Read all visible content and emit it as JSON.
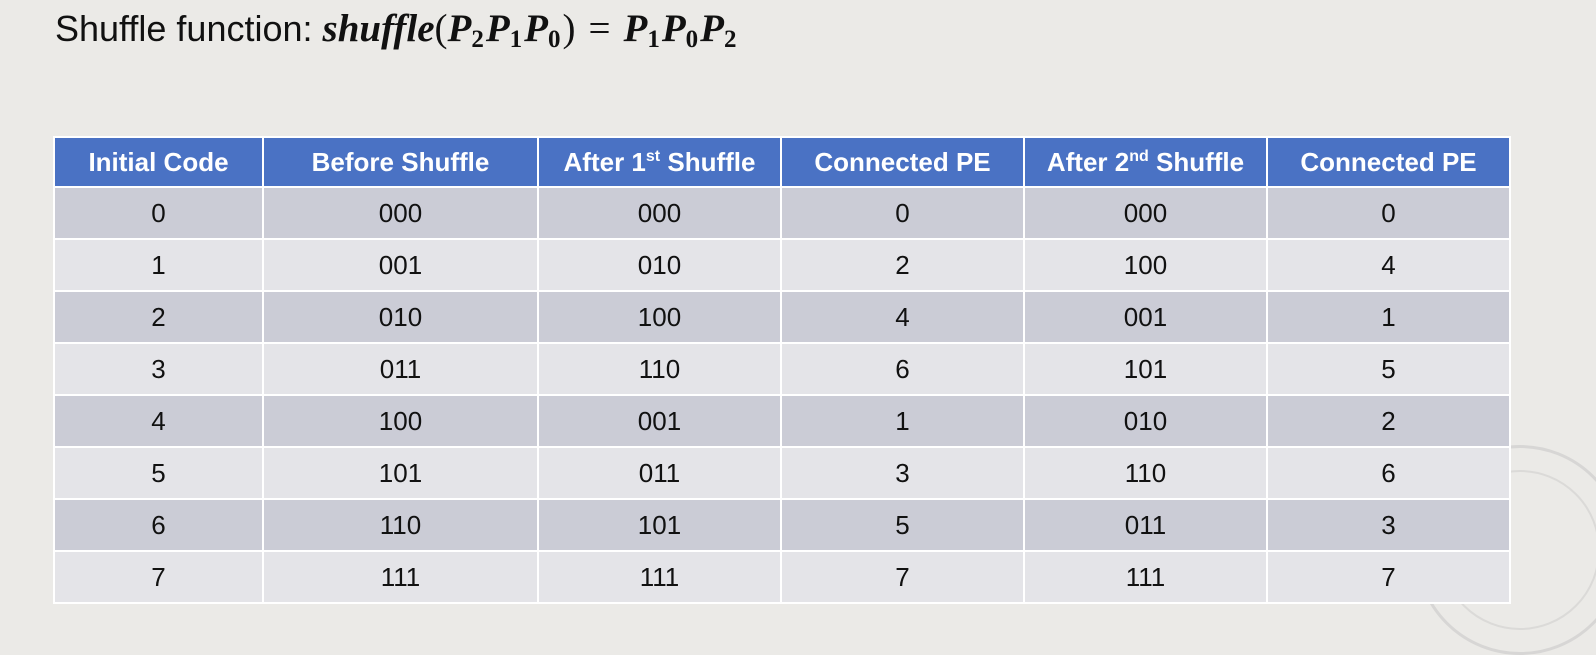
{
  "title": {
    "prefix": "Shuffle function:",
    "formula": {
      "function_name": "shuffle",
      "open_paren": "(",
      "close_paren": ")",
      "equals": "=",
      "input": [
        {
          "var": "P",
          "sub": "2"
        },
        {
          "var": "P",
          "sub": "1"
        },
        {
          "var": "P",
          "sub": "0"
        }
      ],
      "output": [
        {
          "var": "P",
          "sub": "1"
        },
        {
          "var": "P",
          "sub": "0"
        },
        {
          "var": "P",
          "sub": "2"
        }
      ]
    }
  },
  "table": {
    "headers": [
      {
        "text": "Initial Code"
      },
      {
        "text": "Before Shuffle"
      },
      {
        "text": "After 1",
        "sup": "st",
        "rest": " Shuffle"
      },
      {
        "text": "Connected PE"
      },
      {
        "text": "After 2",
        "sup": "nd",
        "rest": " Shuffle"
      },
      {
        "text": "Connected PE"
      }
    ],
    "rows": [
      [
        "0",
        "000",
        "000",
        "0",
        "000",
        "0"
      ],
      [
        "1",
        "001",
        "010",
        "2",
        "100",
        "4"
      ],
      [
        "2",
        "010",
        "100",
        "4",
        "001",
        "1"
      ],
      [
        "3",
        "011",
        "110",
        "6",
        "101",
        "5"
      ],
      [
        "4",
        "100",
        "001",
        "1",
        "010",
        "2"
      ],
      [
        "5",
        "101",
        "011",
        "3",
        "110",
        "6"
      ],
      [
        "6",
        "110",
        "101",
        "5",
        "011",
        "3"
      ],
      [
        "7",
        "111",
        "111",
        "7",
        "111",
        "7"
      ]
    ]
  },
  "colors": {
    "header_bg": "#4a72c4",
    "row_odd_bg": "#cbccd6",
    "row_even_bg": "#e4e4e8",
    "page_bg": "#ebeae7"
  }
}
